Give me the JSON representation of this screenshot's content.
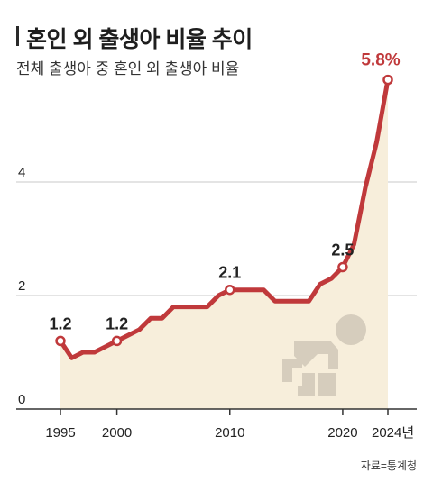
{
  "header": {
    "title": "혼인 외 출생아 비율 추이",
    "subtitle": "전체 출생아 중 혼인 외 출생아 비율"
  },
  "source": "자료=통계청",
  "colors": {
    "line": "#c0393b",
    "area": "#f7eedb",
    "grid": "#c8c8c8",
    "icon": "#d6cdbd"
  },
  "icon": "baby-crawling-icon",
  "chart_data": {
    "type": "area",
    "title": "혼인 외 출생아 비율 추이",
    "subtitle": "전체 출생아 중 혼인 외 출생아 비율",
    "x": [
      1995,
      1996,
      1997,
      1998,
      1999,
      2000,
      2001,
      2002,
      2003,
      2004,
      2005,
      2006,
      2007,
      2008,
      2009,
      2010,
      2011,
      2012,
      2013,
      2014,
      2015,
      2016,
      2017,
      2018,
      2019,
      2020,
      2021,
      2022,
      2023,
      2024
    ],
    "values": [
      1.2,
      0.9,
      1.0,
      1.0,
      1.1,
      1.2,
      1.3,
      1.4,
      1.6,
      1.6,
      1.8,
      1.8,
      1.8,
      1.8,
      2.0,
      2.1,
      2.1,
      2.1,
      2.1,
      1.9,
      1.9,
      1.9,
      1.9,
      2.2,
      2.3,
      2.5,
      2.9,
      3.9,
      4.7,
      5.8
    ],
    "labels": [
      {
        "x": 1995,
        "text": "1.2"
      },
      {
        "x": 2000,
        "text": "1.2"
      },
      {
        "x": 2010,
        "text": "2.1"
      },
      {
        "x": 2020,
        "text": "2.5"
      },
      {
        "x": 2024,
        "text": "5.8%"
      }
    ],
    "y_ticks": [
      {
        "value": 0,
        "label": "0"
      },
      {
        "value": 2,
        "label": "2"
      },
      {
        "value": 4,
        "label": "4"
      }
    ],
    "x_ticks": [
      {
        "value": 1995,
        "label": "1995"
      },
      {
        "value": 2000,
        "label": "2000"
      },
      {
        "value": 2010,
        "label": "2010"
      },
      {
        "value": 2020,
        "label": "2020"
      },
      {
        "value": 2024,
        "label": "2024년"
      }
    ],
    "ylim": [
      0,
      6
    ],
    "xlim": [
      1995,
      2024
    ],
    "grid": true,
    "xlabel": "",
    "ylabel": ""
  }
}
